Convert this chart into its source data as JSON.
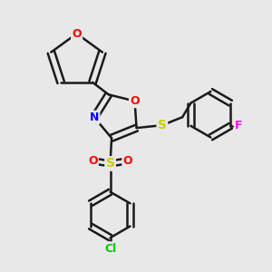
{
  "background_color": "#e8e8e8",
  "bond_color": "#1a1a1a",
  "bond_width": 1.8,
  "atom_colors": {
    "O": "#ff0000",
    "N": "#0000ff",
    "S": "#cccc00",
    "Cl": "#00cc00",
    "F": "#ff00ff",
    "C": "#1a1a1a"
  },
  "font_size": 9,
  "fig_size": [
    3.0,
    3.0
  ],
  "dpi": 100
}
